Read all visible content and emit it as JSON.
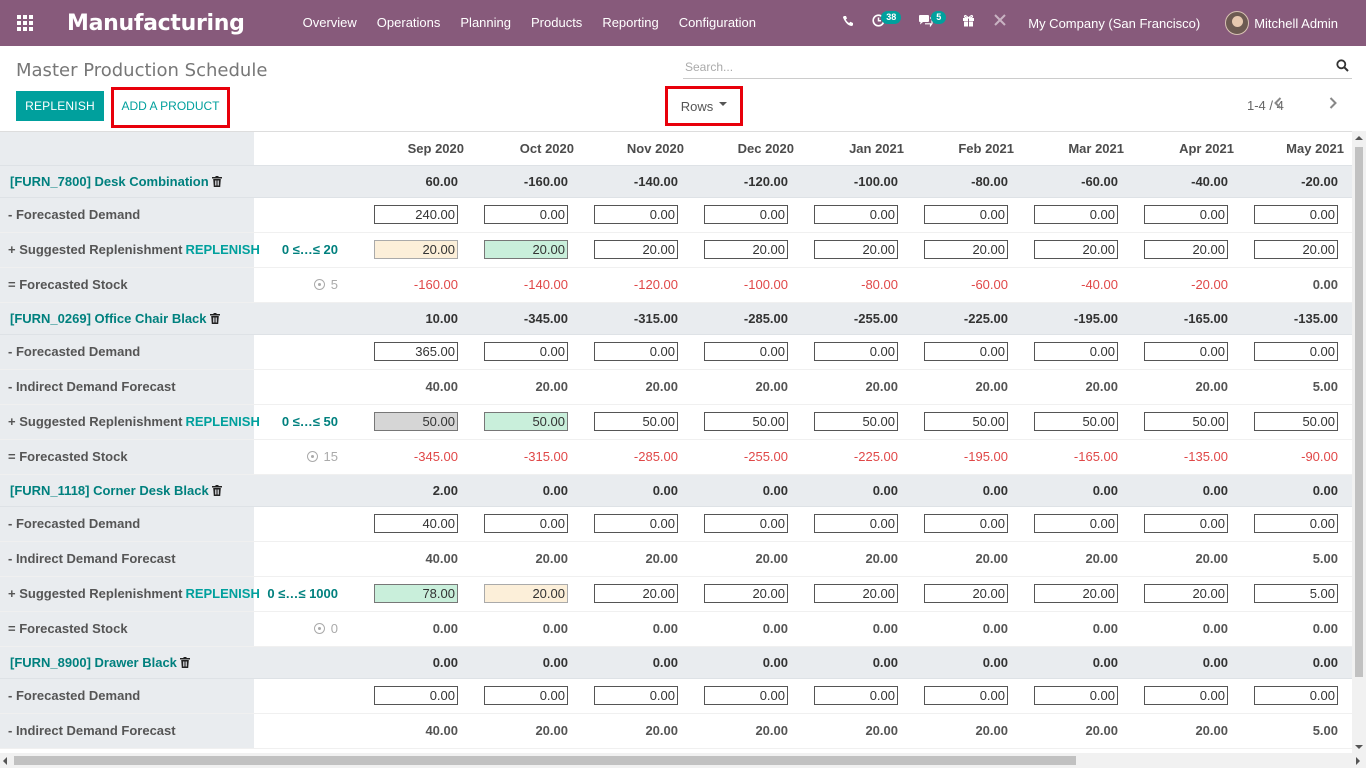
{
  "navbar": {
    "app_title": "Manufacturing",
    "menu": [
      "Overview",
      "Operations",
      "Planning",
      "Products",
      "Reporting",
      "Configuration"
    ],
    "activity_count": "38",
    "message_count": "5",
    "company": "My Company (San Francisco)",
    "user": "Mitchell Admin",
    "color": "#875a7b"
  },
  "control": {
    "page_title": "Master Production Schedule",
    "search_placeholder": "Search...",
    "replenish_label": "REPLENISH",
    "add_product_label": "ADD A PRODUCT",
    "rows_label": "Rows",
    "pager": "1-4 / 4",
    "accent": "#00a09d"
  },
  "months": [
    "Sep 2020",
    "Oct 2020",
    "Nov 2020",
    "Dec 2020",
    "Jan 2021",
    "Feb 2021",
    "Mar 2021",
    "Apr 2021",
    "May 2021"
  ],
  "labels": {
    "forecasted_demand": "- Forecasted Demand",
    "indirect_demand": "- Indirect Demand Forecast",
    "suggested_replenishment": "+ Suggested Replenishment",
    "replenish_link": "REPLENISH",
    "forecasted_stock": "= Forecasted Stock"
  },
  "products": [
    {
      "name": "[FURN_7800] Desk Combination",
      "starting": [
        "60.00",
        "-160.00",
        "-140.00",
        "-120.00",
        "-100.00",
        "-80.00",
        "-60.00",
        "-40.00",
        "-20.00"
      ],
      "forecasted_demand": [
        "240.00",
        "0.00",
        "0.00",
        "0.00",
        "0.00",
        "0.00",
        "0.00",
        "0.00",
        "0.00"
      ],
      "indirect_demand": null,
      "range": "0 ≤…≤ 20",
      "replenishment": [
        "20.00",
        "20.00",
        "20.00",
        "20.00",
        "20.00",
        "20.00",
        "20.00",
        "20.00",
        "20.00"
      ],
      "replenishment_states": [
        "orange",
        "green",
        "",
        "",
        "",
        "",
        "",
        "",
        ""
      ],
      "safety": "5",
      "forecasted_stock": [
        "-160.00",
        "-140.00",
        "-120.00",
        "-100.00",
        "-80.00",
        "-60.00",
        "-40.00",
        "-20.00",
        "0.00"
      ]
    },
    {
      "name": "[FURN_0269] Office Chair Black",
      "starting": [
        "10.00",
        "-345.00",
        "-315.00",
        "-285.00",
        "-255.00",
        "-225.00",
        "-195.00",
        "-165.00",
        "-135.00"
      ],
      "forecasted_demand": [
        "365.00",
        "0.00",
        "0.00",
        "0.00",
        "0.00",
        "0.00",
        "0.00",
        "0.00",
        "0.00"
      ],
      "indirect_demand": [
        "40.00",
        "20.00",
        "20.00",
        "20.00",
        "20.00",
        "20.00",
        "20.00",
        "20.00",
        "5.00"
      ],
      "range": "0 ≤…≤ 50",
      "replenishment": [
        "50.00",
        "50.00",
        "50.00",
        "50.00",
        "50.00",
        "50.00",
        "50.00",
        "50.00",
        "50.00"
      ],
      "replenishment_states": [
        "grey",
        "green",
        "",
        "",
        "",
        "",
        "",
        "",
        ""
      ],
      "safety": "15",
      "forecasted_stock": [
        "-345.00",
        "-315.00",
        "-285.00",
        "-255.00",
        "-225.00",
        "-195.00",
        "-165.00",
        "-135.00",
        "-90.00"
      ]
    },
    {
      "name": "[FURN_1118] Corner Desk Black",
      "starting": [
        "2.00",
        "0.00",
        "0.00",
        "0.00",
        "0.00",
        "0.00",
        "0.00",
        "0.00",
        "0.00"
      ],
      "forecasted_demand": [
        "40.00",
        "0.00",
        "0.00",
        "0.00",
        "0.00",
        "0.00",
        "0.00",
        "0.00",
        "0.00"
      ],
      "indirect_demand": [
        "40.00",
        "20.00",
        "20.00",
        "20.00",
        "20.00",
        "20.00",
        "20.00",
        "20.00",
        "5.00"
      ],
      "range": "0 ≤…≤ 1000",
      "replenishment": [
        "78.00",
        "20.00",
        "20.00",
        "20.00",
        "20.00",
        "20.00",
        "20.00",
        "20.00",
        "5.00"
      ],
      "replenishment_states": [
        "green",
        "orange",
        "",
        "",
        "",
        "",
        "",
        "",
        ""
      ],
      "safety": "0",
      "forecasted_stock": [
        "0.00",
        "0.00",
        "0.00",
        "0.00",
        "0.00",
        "0.00",
        "0.00",
        "0.00",
        "0.00"
      ]
    },
    {
      "name": "[FURN_8900] Drawer Black",
      "starting": [
        "0.00",
        "0.00",
        "0.00",
        "0.00",
        "0.00",
        "0.00",
        "0.00",
        "0.00",
        "0.00"
      ],
      "forecasted_demand": [
        "0.00",
        "0.00",
        "0.00",
        "0.00",
        "0.00",
        "0.00",
        "0.00",
        "0.00",
        "0.00"
      ],
      "indirect_demand": [
        "40.00",
        "20.00",
        "20.00",
        "20.00",
        "20.00",
        "20.00",
        "20.00",
        "20.00",
        "5.00"
      ],
      "range": null,
      "replenishment": null,
      "replenishment_states": null,
      "safety": null,
      "forecasted_stock": null
    }
  ]
}
